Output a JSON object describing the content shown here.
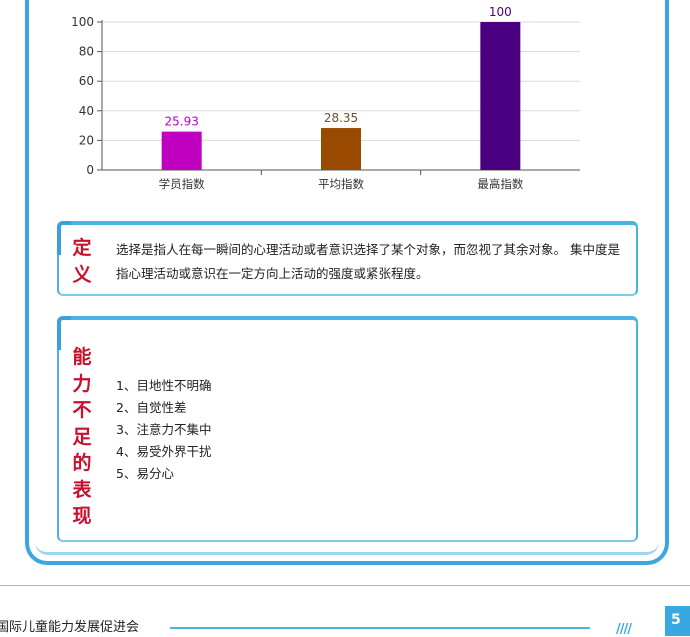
{
  "chart_data": {
    "type": "bar",
    "categories": [
      "学员指数",
      "平均指数",
      "最高指数"
    ],
    "values": [
      25.93,
      28.35,
      100
    ],
    "value_labels": [
      "25.93",
      "28.35",
      "100"
    ],
    "colors": [
      "#c000c0",
      "#9a4a00",
      "#4b0082"
    ],
    "label_colors": [
      "#c000c0",
      "#6b5030",
      "#4b0082"
    ],
    "yticks": [
      "0",
      "20",
      "40",
      "60",
      "80",
      "100"
    ],
    "ylim": [
      0,
      100
    ],
    "grid": true
  },
  "definition": {
    "title_chars": [
      "定",
      "义"
    ],
    "text": "选择是指人在每一瞬间的心理活动或者意识选择了某个对象，而忽视了其余对象。 集中度是指心理活动或意识在一定方向上活动的强度或紧张程度。"
  },
  "ability": {
    "title_chars": [
      "能",
      "力",
      "不",
      "足",
      "的",
      "表",
      "现"
    ],
    "items": [
      "1、目地性不明确",
      "2、自觉性差",
      "3、注意力不集中",
      "4、易受外界干扰",
      "5、易分心"
    ]
  },
  "footer": {
    "org_text": "国际儿童能力发展促进会",
    "page_number": "5"
  }
}
